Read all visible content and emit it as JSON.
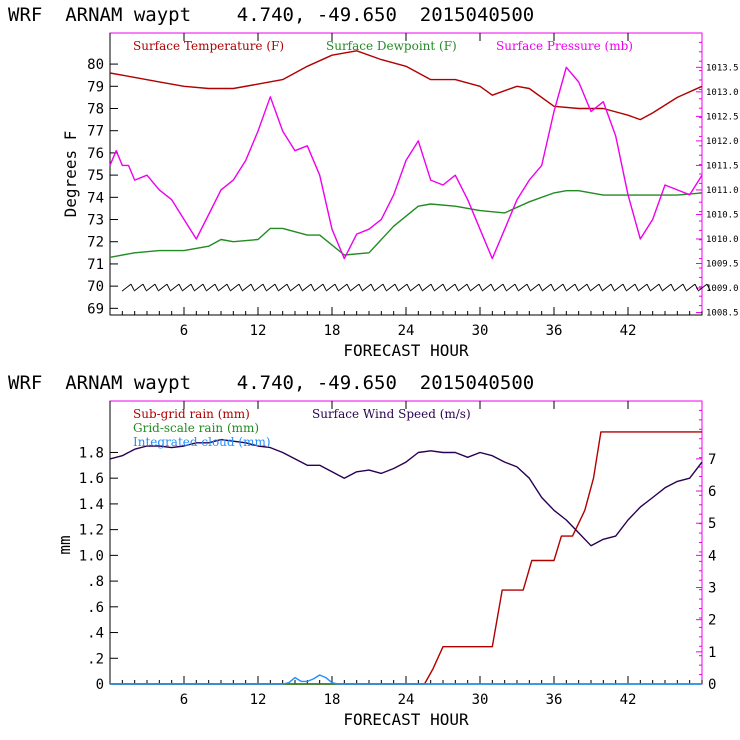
{
  "top": {
    "title": "WRF  ARNAM waypt    4.740, -49.650  2015040500",
    "xlabel": "FORECAST HOUR",
    "ylabel": "Degrees F",
    "left_ticks": [
      "69",
      "70",
      "71",
      "72",
      "73",
      "74",
      "75",
      "76",
      "77",
      "78",
      "79",
      "80"
    ],
    "right_ticks": [
      "1008.5",
      "1009.0",
      "1009.5",
      "1010.0",
      "1010.5",
      "1011.0",
      "1011.5",
      "1012.0",
      "1012.5",
      "1013.0",
      "1013.5"
    ],
    "x_ticks": [
      "6",
      "12",
      "18",
      "24",
      "30",
      "36",
      "42"
    ],
    "legend": [
      {
        "label": "Surface Temperature (F)",
        "color": "#b00000"
      },
      {
        "label": "Surface Dewpoint (F)",
        "color": "#228b22"
      },
      {
        "label": "Surface Pressure (mb)",
        "color": "#ee00ee"
      }
    ]
  },
  "bottom": {
    "title": "WRF  ARNAM waypt    4.740, -49.650  2015040500",
    "xlabel": "FORECAST HOUR",
    "ylabel": "mm",
    "left_ticks": [
      "0",
      ".2",
      ".4",
      ".6",
      ".8",
      "1.0",
      "1.2",
      "1.4",
      "1.6",
      "1.8"
    ],
    "right_ticks": [
      "0",
      "1",
      "2",
      "3",
      "4",
      "5",
      "6",
      "7"
    ],
    "x_ticks": [
      "6",
      "12",
      "18",
      "24",
      "30",
      "36",
      "42"
    ],
    "legend": [
      {
        "label": "Sub-grid rain (mm)",
        "color": "#b00000"
      },
      {
        "label": "Surface Wind Speed (m/s)",
        "color": "#2a0050"
      },
      {
        "label": "Grid-scale rain (mm)",
        "color": "#228b22"
      },
      {
        "label": "Integrated cloud (mm)",
        "color": "#1e90ff"
      }
    ]
  },
  "chart_data": [
    {
      "type": "line",
      "title": "WRF  ARNAM waypt    4.740, -49.650  2015040500",
      "xlabel": "FORECAST HOUR",
      "ylabel": "Degrees F",
      "xlim": [
        0,
        48
      ],
      "ylim": [
        68.7,
        81.4
      ],
      "y2lim": [
        1008.45,
        1014.2
      ],
      "series": [
        {
          "name": "Surface Temperature (F)",
          "axis": "left",
          "color": "#b00000",
          "x": [
            0,
            2,
            4,
            6,
            8,
            10,
            12,
            14,
            16,
            18,
            20,
            22,
            24,
            26,
            28,
            30,
            31,
            32,
            33,
            34,
            36,
            38,
            40,
            42,
            43,
            44,
            46,
            48
          ],
          "y": [
            79.6,
            79.4,
            79.2,
            79.0,
            78.9,
            78.9,
            79.1,
            79.3,
            79.9,
            80.4,
            80.6,
            80.2,
            79.9,
            79.3,
            79.3,
            79.0,
            78.6,
            78.8,
            79.0,
            78.9,
            78.1,
            78.0,
            78.0,
            77.7,
            77.5,
            77.8,
            78.5,
            79.0
          ]
        },
        {
          "name": "Surface Dewpoint (F)",
          "axis": "left",
          "color": "#228b22",
          "x": [
            0,
            2,
            4,
            6,
            8,
            9,
            10,
            12,
            13,
            14,
            16,
            17,
            19,
            21,
            23,
            25,
            26,
            28,
            30,
            32,
            34,
            36,
            37,
            38,
            40,
            42,
            44,
            46,
            48
          ],
          "y": [
            71.3,
            71.5,
            71.6,
            71.6,
            71.8,
            72.1,
            72.0,
            72.1,
            72.6,
            72.6,
            72.3,
            72.3,
            71.4,
            71.5,
            72.7,
            73.6,
            73.7,
            73.6,
            73.4,
            73.3,
            73.8,
            74.2,
            74.3,
            74.3,
            74.1,
            74.1,
            74.1,
            74.1,
            74.2
          ]
        },
        {
          "name": "Surface Pressure (mb)",
          "axis": "right",
          "color": "#ee00ee",
          "x": [
            0,
            0.5,
            1,
            1.5,
            2,
            3,
            4,
            5,
            6,
            7,
            8,
            9,
            10,
            11,
            12,
            13,
            14,
            15,
            16,
            17,
            18,
            19,
            20,
            21,
            22,
            23,
            24,
            25,
            26,
            27,
            28,
            29,
            30,
            31,
            32,
            33,
            34,
            35,
            36,
            37,
            38,
            39,
            40,
            41,
            42,
            43,
            44,
            45,
            46,
            47,
            48
          ],
          "y": [
            1011.5,
            1011.8,
            1011.5,
            1011.5,
            1011.2,
            1011.3,
            1011.0,
            1010.8,
            1010.4,
            1010.0,
            1010.5,
            1011.0,
            1011.2,
            1011.6,
            1012.2,
            1012.9,
            1012.2,
            1011.8,
            1011.9,
            1011.3,
            1010.2,
            1009.6,
            1010.1,
            1010.2,
            1010.4,
            1010.9,
            1011.6,
            1012.0,
            1011.2,
            1011.1,
            1011.3,
            1010.8,
            1010.2,
            1009.6,
            1010.2,
            1010.8,
            1011.2,
            1011.5,
            1012.6,
            1013.5,
            1013.2,
            1012.6,
            1012.8,
            1012.1,
            1010.9,
            1010.0,
            1010.4,
            1011.1,
            1011.0,
            1010.9,
            1011.3
          ]
        }
      ]
    },
    {
      "type": "line",
      "title": "WRF  ARNAM waypt    4.740, -49.650  2015040500",
      "xlabel": "FORECAST HOUR",
      "ylabel": "mm",
      "xlim": [
        0,
        48
      ],
      "ylim": [
        0,
        2.2
      ],
      "y2lim": [
        0,
        8.8
      ],
      "series": [
        {
          "name": "Sub-grid rain (mm)",
          "axis": "left",
          "color": "#b00000",
          "x": [
            0,
            25.5,
            26.2,
            27,
            31,
            31.8,
            33.5,
            34.2,
            36,
            36.6,
            37.5,
            38,
            38.5,
            39.2,
            39.8,
            48
          ],
          "y": [
            0,
            0,
            0.12,
            0.29,
            0.29,
            0.73,
            0.73,
            0.96,
            0.96,
            1.15,
            1.15,
            1.25,
            1.35,
            1.6,
            1.96,
            1.96
          ]
        },
        {
          "name": "Surface Wind Speed (m/s)",
          "axis": "right",
          "color": "#2a0050",
          "x": [
            0,
            1,
            2,
            3,
            4,
            5,
            6,
            7,
            8,
            9,
            10,
            11,
            12,
            13,
            14,
            15,
            16,
            17,
            18,
            19,
            20,
            21,
            22,
            23,
            24,
            25,
            26,
            27,
            28,
            29,
            30,
            31,
            32,
            33,
            34,
            35,
            36,
            37,
            38,
            39,
            40,
            41,
            42,
            43,
            44,
            45,
            46,
            47,
            48
          ],
          "y": [
            7.0,
            7.1,
            7.3,
            7.4,
            7.4,
            7.35,
            7.4,
            7.5,
            7.5,
            7.6,
            7.55,
            7.5,
            7.4,
            7.35,
            7.2,
            7.0,
            6.8,
            6.8,
            6.6,
            6.4,
            6.6,
            6.65,
            6.55,
            6.7,
            6.9,
            7.2,
            7.25,
            7.2,
            7.2,
            7.05,
            7.2,
            7.1,
            6.9,
            6.75,
            6.4,
            5.8,
            5.4,
            5.1,
            4.7,
            4.3,
            4.5,
            4.6,
            5.1,
            5.5,
            5.8,
            6.1,
            6.3,
            6.4,
            6.9
          ]
        },
        {
          "name": "Grid-scale rain (mm)",
          "axis": "left",
          "color": "#228b22",
          "x": [
            0,
            48
          ],
          "y": [
            0,
            0
          ]
        },
        {
          "name": "Integrated cloud (mm)",
          "axis": "left",
          "color": "#1e90ff",
          "x": [
            0,
            14,
            14.5,
            15,
            15.5,
            16,
            16.5,
            17,
            17.5,
            18,
            18.5,
            48
          ],
          "y": [
            0,
            0,
            0.01,
            0.05,
            0.02,
            0.02,
            0.04,
            0.07,
            0.05,
            0.01,
            0,
            0
          ]
        }
      ]
    }
  ]
}
